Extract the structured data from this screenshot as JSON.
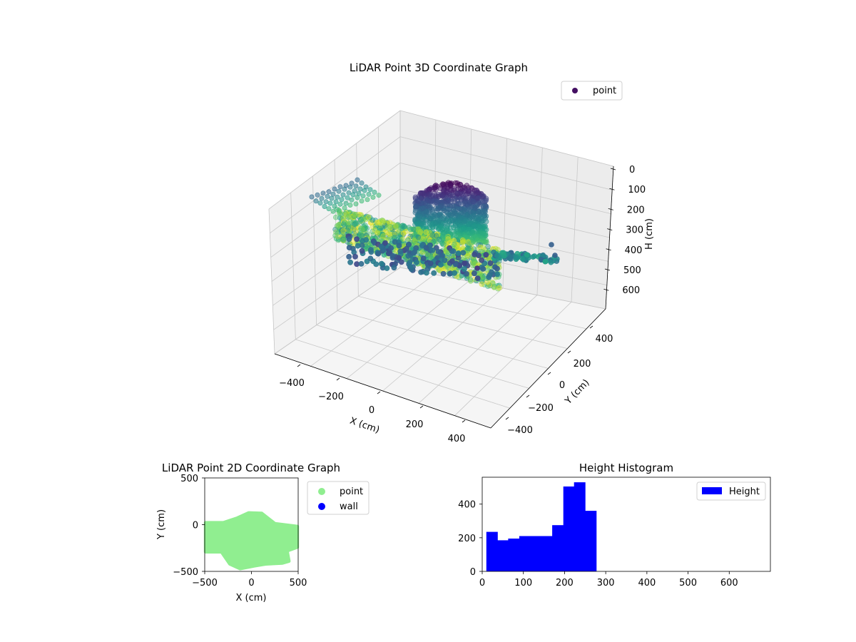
{
  "figure": {
    "panels": [
      {
        "id": "lidar3d",
        "type": "scatter3d",
        "title": "LiDAR Point 3D Coordinate Graph",
        "xlabel": "X (cm)",
        "ylabel": "Y (cm)",
        "zlabel": "H (cm)",
        "xticks": [
          "−400",
          "−200",
          "0",
          "200",
          "400"
        ],
        "yticks": [
          "400",
          "200",
          "0",
          "−200",
          "−400"
        ],
        "zticks": [
          "0",
          "100",
          "200",
          "300",
          "400",
          "500",
          "600"
        ],
        "legend": [
          {
            "label": "point",
            "color": "#440f62"
          }
        ],
        "colormap": "viridis"
      },
      {
        "id": "lidar2d",
        "type": "scatter",
        "title": "LiDAR Point 2D Coordinate Graph",
        "xlabel": "X (cm)",
        "ylabel": "Y (cm)",
        "xticks": [
          "−500",
          "0",
          "500"
        ],
        "yticks": [
          "500",
          "0",
          "−500"
        ],
        "legend": [
          {
            "label": "point",
            "color": "#90ee90"
          },
          {
            "label": "wall",
            "color": "#0000ff"
          }
        ]
      },
      {
        "id": "hist",
        "type": "bar",
        "title": "Height Histogram",
        "xticks": [
          "0",
          "100",
          "200",
          "300",
          "400",
          "500",
          "600"
        ],
        "yticks": [
          "0",
          "200",
          "400"
        ],
        "legend": [
          {
            "label": "Height",
            "color": "#0000ff"
          }
        ]
      }
    ]
  },
  "chart_data": [
    {
      "type": "scatter",
      "subtype": "3d",
      "title": "LiDAR Point 3D Coordinate Graph",
      "xlabel": "X (cm)",
      "ylabel": "Y (cm)",
      "zlabel": "H (cm)",
      "xlim": [
        -500,
        500
      ],
      "ylim": [
        -500,
        500
      ],
      "zlim": [
        650,
        0
      ],
      "series": [
        {
          "name": "point"
        }
      ],
      "colormap": "viridis",
      "legend": "top-right",
      "grid": true
    },
    {
      "type": "scatter",
      "title": "LiDAR Point 2D Coordinate Graph",
      "xlabel": "X (cm)",
      "ylabel": "Y (cm)",
      "xlim": [
        -500,
        500
      ],
      "ylim": [
        -500,
        500
      ],
      "series": [
        {
          "name": "point",
          "color": "#90ee90",
          "x_range": [
            -490,
            490
          ],
          "y_range": [
            -480,
            130
          ]
        },
        {
          "name": "wall",
          "color": "#0000ff",
          "count": 0
        }
      ],
      "legend": "outside-right"
    },
    {
      "type": "bar",
      "subtype": "histogram",
      "title": "Height Histogram",
      "xlim": [
        0,
        700
      ],
      "ylim": [
        0,
        560
      ],
      "bin_edges": [
        10,
        37,
        63,
        90,
        117,
        143,
        170,
        197,
        223,
        250,
        277
      ],
      "values": [
        235,
        185,
        195,
        210,
        210,
        210,
        275,
        505,
        530,
        360
      ],
      "series": [
        {
          "name": "Height",
          "color": "#0000ff"
        }
      ],
      "legend": "top-right"
    }
  ]
}
